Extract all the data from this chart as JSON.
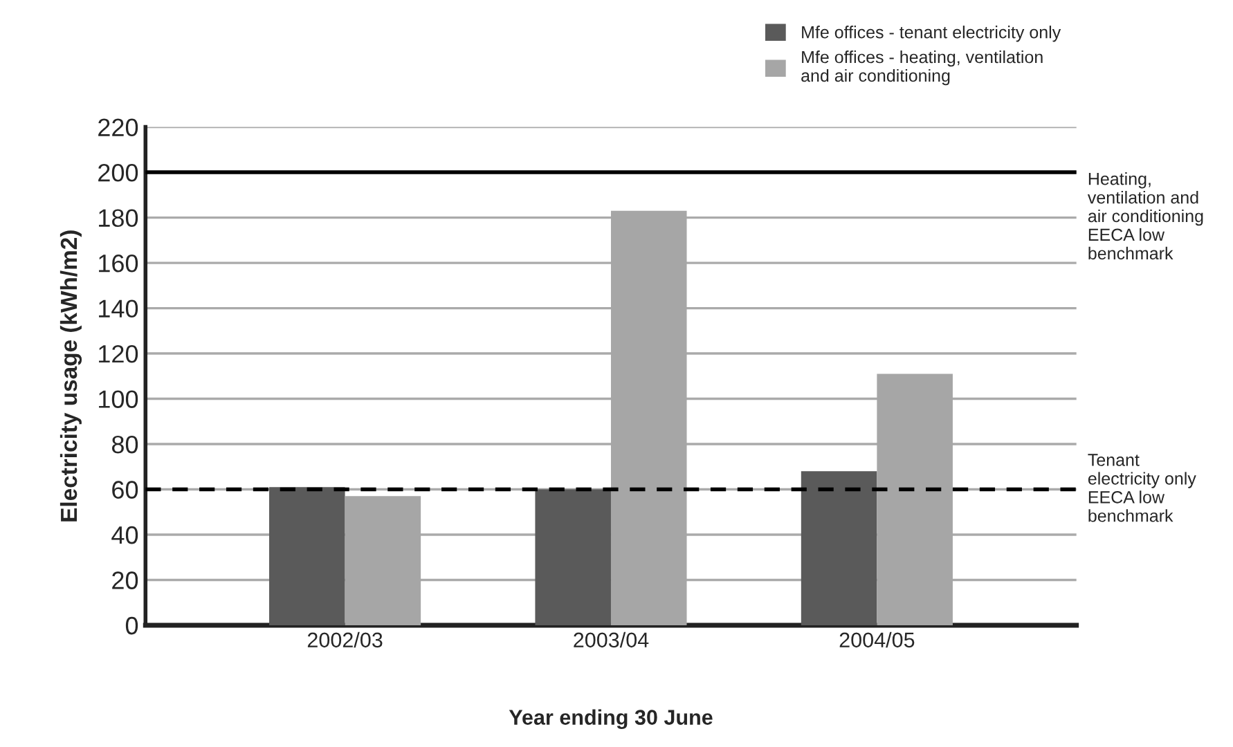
{
  "chart_data": {
    "type": "bar",
    "categories": [
      "2002/03",
      "2003/04",
      "2004/05"
    ],
    "series": [
      {
        "name": "Mfe offices - tenant electricity only",
        "color": "#5a5a5a",
        "values": [
          61,
          60,
          68
        ]
      },
      {
        "name": "Mfe offices - heating, ventilation\nand air conditioning",
        "color": "#a6a6a6",
        "values": [
          57,
          183,
          111
        ]
      }
    ],
    "xlabel": "Year ending 30 June",
    "ylabel": "Electricity usage (kWh/m2)",
    "ylim": [
      0,
      220
    ],
    "yticks": [
      0,
      20,
      40,
      60,
      80,
      100,
      120,
      140,
      160,
      180,
      200,
      220
    ],
    "grid": "y",
    "legend": "top right",
    "ref_lines": [
      {
        "axis": "y",
        "value": 200,
        "label": "Heating,\nventilation and\nair conditioning\nEECA low\nbenchmark",
        "color": "#000000",
        "line_style": "solid"
      },
      {
        "axis": "y",
        "value": 60,
        "label": "Tenant\nelectricity only\nEECA low\nbenchmark",
        "color": "#000000",
        "line_style": "dashed"
      }
    ]
  }
}
